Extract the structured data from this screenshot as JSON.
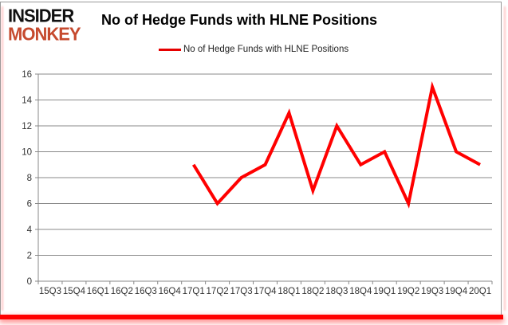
{
  "logo": {
    "line1": "INSIDER",
    "line2": "MONKEY"
  },
  "header": {
    "title": "No of Hedge Funds with HLNE Positions"
  },
  "legend": {
    "label": "No of Hedge Funds with HLNE Positions"
  },
  "chart_data": {
    "type": "line",
    "title": "No of Hedge Funds with HLNE Positions",
    "xlabel": "",
    "ylabel": "",
    "categories": [
      "15Q3",
      "15Q4",
      "16Q1",
      "16Q2",
      "16Q3",
      "16Q4",
      "17Q1",
      "17Q2",
      "17Q3",
      "17Q4",
      "18Q1",
      "18Q2",
      "18Q3",
      "18Q4",
      "19Q1",
      "19Q2",
      "19Q3",
      "19Q4",
      "20Q1"
    ],
    "series": [
      {
        "name": "No of Hedge Funds with HLNE Positions",
        "color": "#ff0000",
        "values": [
          null,
          null,
          null,
          null,
          null,
          null,
          9,
          6,
          8,
          9,
          13,
          7,
          12,
          9,
          10,
          6,
          15,
          10,
          9
        ]
      }
    ],
    "ylim": [
      0,
      16
    ],
    "ytick_step": 2,
    "grid": "horizontal",
    "legend_position": "top-center"
  },
  "colors": {
    "line_red": "#ff0000",
    "logo_red": "#c64a2e",
    "logo_black": "#111111",
    "grid_gray": "#898989",
    "axis_text": "#333333",
    "frame_gray": "#9a9a9a",
    "bottom_bar_red": "#ff0000"
  }
}
